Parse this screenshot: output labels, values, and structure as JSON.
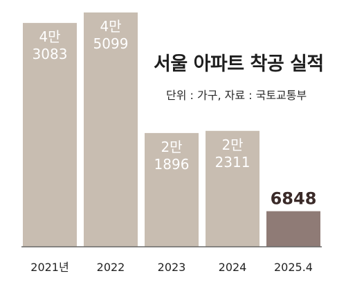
{
  "title": "서울 아파트 착공 실적",
  "subtitle": "단위 : 가구, 자료 : 국토교통부",
  "colors": {
    "bar": "#c8bdb1",
    "highlight": "#8f7b76",
    "baseline": "#666666"
  },
  "chart_data": {
    "type": "bar",
    "title": "서울 아파트 착공 실적",
    "unit": "가구",
    "source": "국토교통부",
    "categories": [
      "2021년",
      "2022",
      "2023",
      "2024",
      "2025.4"
    ],
    "values": [
      43083,
      45099,
      21896,
      22311,
      6848
    ],
    "labels": [
      [
        "4만",
        "3083"
      ],
      [
        "4만",
        "5099"
      ],
      [
        "2만",
        "1896"
      ],
      [
        "2만",
        "2311"
      ],
      [
        "6848"
      ]
    ],
    "highlight_index": 4,
    "ylim": [
      0,
      45099
    ],
    "grid": false
  }
}
